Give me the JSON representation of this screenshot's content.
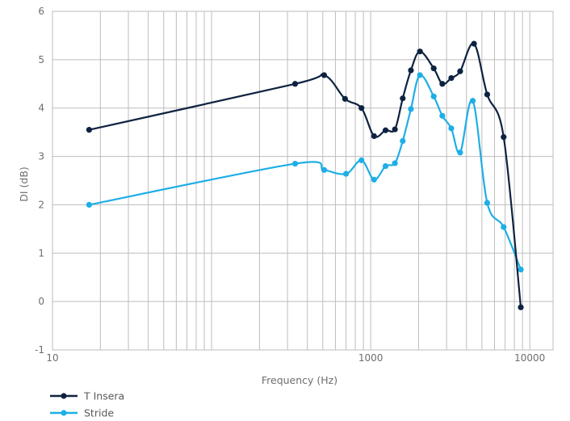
{
  "chart_data": {
    "type": "line",
    "xlabel": "Frequency (Hz)",
    "ylabel": "DI (dB)",
    "x_scale": "log",
    "xlim": [
      10,
      14000
    ],
    "ylim": [
      -1,
      6
    ],
    "x_ticks": [
      {
        "value": 10,
        "label": "10"
      },
      {
        "value": 1000,
        "label": "1000"
      },
      {
        "value": 10000,
        "label": "10000"
      }
    ],
    "y_ticks": [
      -1,
      0,
      1,
      2,
      3,
      4,
      5,
      6
    ],
    "grid": true,
    "legend_position": "bottom-left",
    "series": [
      {
        "name": "T Insera",
        "color": "#0e2240",
        "x": [
          17,
          335,
          510,
          690,
          875,
          1050,
          1240,
          1420,
          1590,
          1790,
          2040,
          2490,
          2820,
          3210,
          3650,
          4460,
          5400,
          6850,
          8780
        ],
        "y": [
          3.55,
          4.5,
          4.68,
          4.19,
          4.0,
          3.42,
          3.54,
          3.56,
          4.2,
          4.78,
          5.17,
          4.82,
          4.5,
          4.62,
          4.76,
          5.33,
          4.28,
          3.4,
          -0.12
        ]
      },
      {
        "name": "Stride",
        "color": "#1eaee6",
        "x": [
          17,
          335,
          510,
          700,
          875,
          1050,
          1240,
          1420,
          1590,
          1790,
          2040,
          2490,
          2820,
          3210,
          3650,
          4380,
          5400,
          6850,
          8780
        ],
        "y": [
          2.0,
          2.85,
          2.72,
          2.64,
          2.92,
          2.52,
          2.8,
          2.86,
          3.32,
          3.98,
          4.68,
          4.24,
          3.84,
          3.58,
          3.08,
          4.15,
          2.04,
          1.54,
          0.66
        ]
      }
    ]
  }
}
